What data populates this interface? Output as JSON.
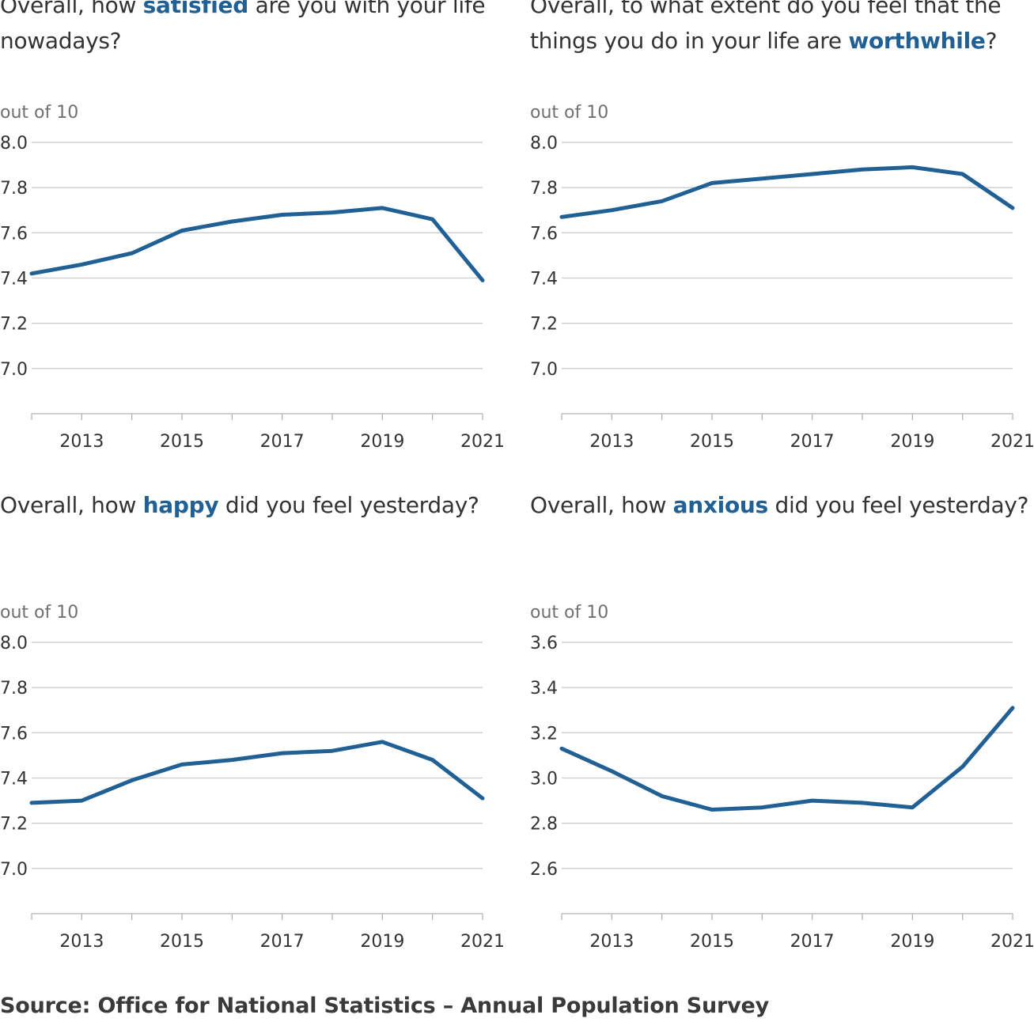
{
  "colors": {
    "line": "#206095",
    "grid": "#cccccc",
    "axis": "#b3b3b3",
    "text": "#333333",
    "unit": "#707070"
  },
  "source": "Source: Office for National Statistics – Annual Population Survey",
  "chart_data": [
    {
      "type": "line",
      "title_parts": {
        "before": "Overall, how ",
        "highlight": "satisfied",
        "after": " are you with your life nowadays?"
      },
      "unit_label": "out of 10",
      "x": [
        2012,
        2013,
        2014,
        2015,
        2016,
        2017,
        2018,
        2019,
        2020,
        2021
      ],
      "xticks": [
        "2013",
        "2015",
        "2017",
        "2019",
        "2021"
      ],
      "yticks": [
        "7.0",
        "7.2",
        "7.4",
        "7.6",
        "7.8",
        "8.0"
      ],
      "ylim": [
        6.8,
        8.0
      ],
      "values": [
        7.42,
        7.46,
        7.51,
        7.61,
        7.65,
        7.68,
        7.69,
        7.71,
        7.66,
        7.39
      ]
    },
    {
      "type": "line",
      "title_parts": {
        "before": "Overall, to what extent do you feel that the things you do in your life are ",
        "highlight": "worthwhile",
        "after": "?"
      },
      "unit_label": "out of 10",
      "x": [
        2012,
        2013,
        2014,
        2015,
        2016,
        2017,
        2018,
        2019,
        2020,
        2021
      ],
      "xticks": [
        "2013",
        "2015",
        "2017",
        "2019",
        "2021"
      ],
      "yticks": [
        "7.0",
        "7.2",
        "7.4",
        "7.6",
        "7.8",
        "8.0"
      ],
      "ylim": [
        6.8,
        8.0
      ],
      "values": [
        7.67,
        7.7,
        7.74,
        7.82,
        7.84,
        7.86,
        7.88,
        7.89,
        7.86,
        7.71
      ]
    },
    {
      "type": "line",
      "title_parts": {
        "before": "Overall, how ",
        "highlight": "happy",
        "after": " did you feel yesterday?"
      },
      "unit_label": "out of 10",
      "x": [
        2012,
        2013,
        2014,
        2015,
        2016,
        2017,
        2018,
        2019,
        2020,
        2021
      ],
      "xticks": [
        "2013",
        "2015",
        "2017",
        "2019",
        "2021"
      ],
      "yticks": [
        "7.0",
        "7.2",
        "7.4",
        "7.6",
        "7.8",
        "8.0"
      ],
      "ylim": [
        6.8,
        8.0
      ],
      "values": [
        7.29,
        7.3,
        7.39,
        7.46,
        7.48,
        7.51,
        7.52,
        7.56,
        7.48,
        7.31
      ]
    },
    {
      "type": "line",
      "title_parts": {
        "before": "Overall, how ",
        "highlight": "anxious",
        "after": " did you feel yesterday?"
      },
      "unit_label": "out of 10",
      "x": [
        2012,
        2013,
        2014,
        2015,
        2016,
        2017,
        2018,
        2019,
        2020,
        2021
      ],
      "xticks": [
        "2013",
        "2015",
        "2017",
        "2019",
        "2021"
      ],
      "yticks": [
        "2.6",
        "2.8",
        "3.0",
        "3.2",
        "3.4",
        "3.6"
      ],
      "ylim": [
        2.4,
        3.6
      ],
      "values": [
        3.13,
        3.03,
        2.92,
        2.86,
        2.87,
        2.9,
        2.89,
        2.87,
        3.05,
        3.31
      ]
    }
  ]
}
